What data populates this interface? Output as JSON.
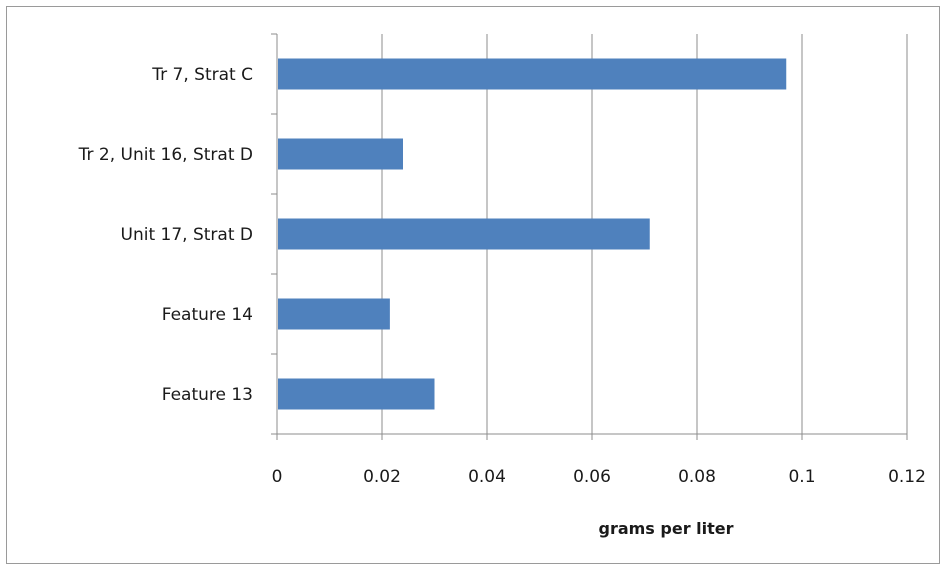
{
  "chart_data": {
    "type": "bar",
    "orientation": "horizontal",
    "categories": [
      "Tr 7, Strat C",
      "Tr 2, Unit 16, Strat D",
      "Unit 17, Strat D",
      "Feature 14",
      "Feature 13"
    ],
    "values": [
      0.097,
      0.024,
      0.071,
      0.0215,
      0.03
    ],
    "xlabel": "grams per liter",
    "ylabel": "",
    "xlim": [
      0,
      0.12
    ],
    "xticks": [
      "0",
      "0.02",
      "0.04",
      "0.06",
      "0.08",
      "0.1",
      "0.12"
    ],
    "grid": "vertical",
    "legend": "none",
    "bar_color": "#4F81BD"
  }
}
